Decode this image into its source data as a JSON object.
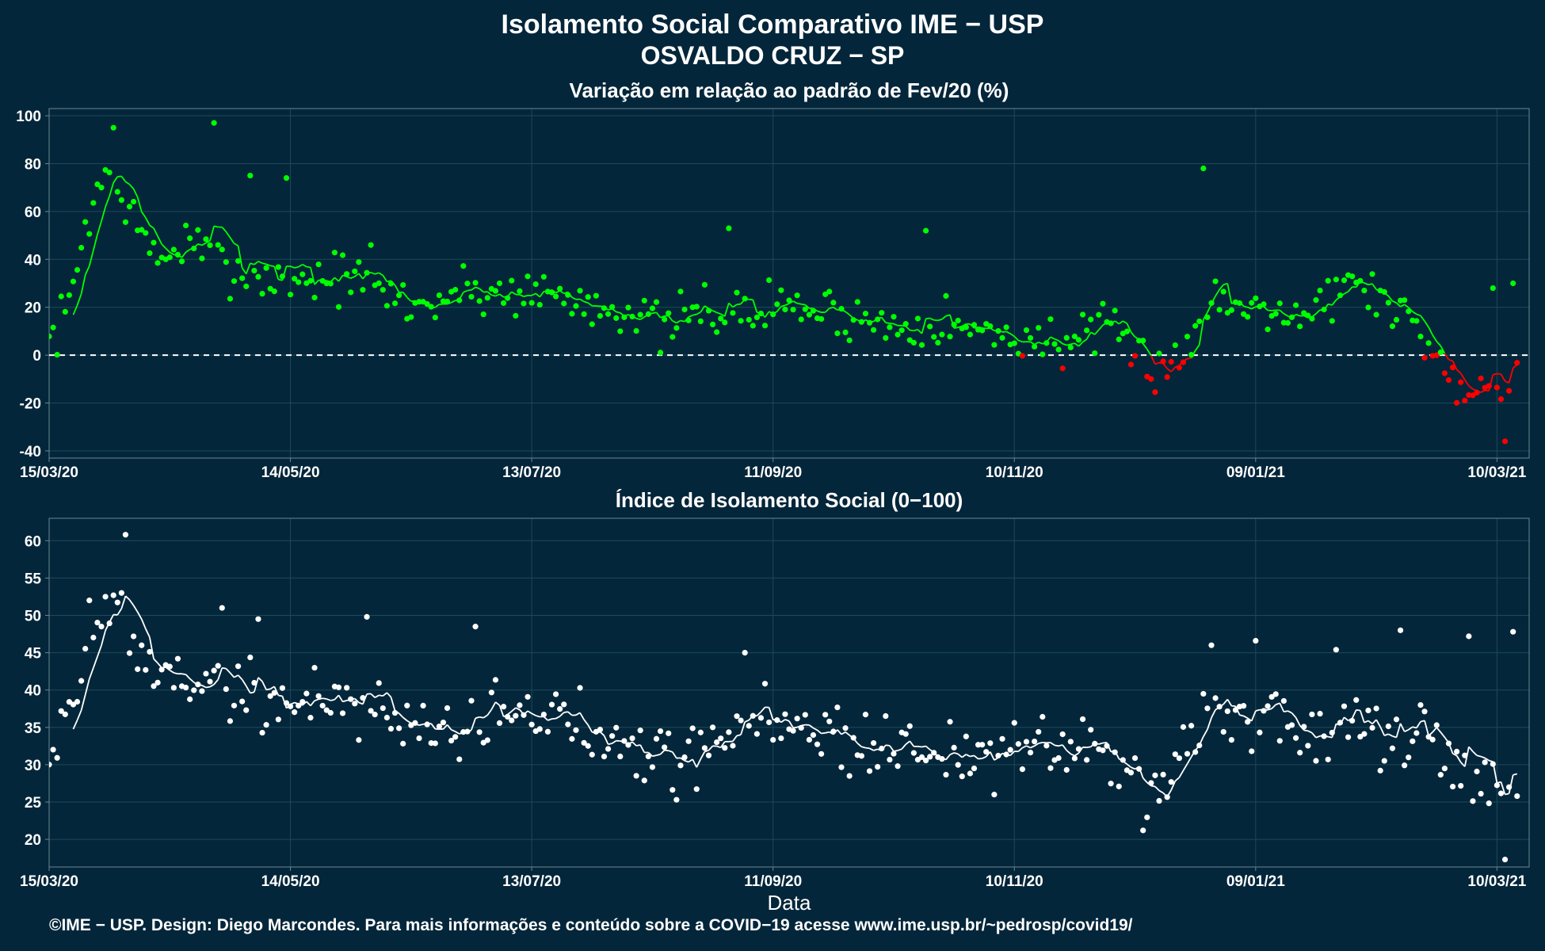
{
  "header": {
    "title_line1": "Isolamento Social Comparativo IME − USP",
    "title_line2": "OSVALDO CRUZ − SP"
  },
  "footer": {
    "credit": "©IME − USP. Design: Diego Marcondes. Para mais informações e conteúdo sobre a COVID−19 acesse www.ime.usp.br/~pedrosp/covid19/"
  },
  "colors": {
    "background": "#04263a",
    "positive_points": "#00ff00",
    "negative_points": "#ff0000",
    "index_points": "#ffffff",
    "grid": "#1b4a58",
    "zero_line": "#ffffff"
  },
  "chart_data": [
    {
      "type": "scatter",
      "title": "Variação em relação ao padrão de Fev/20 (%)",
      "xlabel": "",
      "ylabel": "",
      "x_range": [
        "2020-03-15",
        "2021-03-15"
      ],
      "x_ticks": [
        "15/03/20",
        "14/05/20",
        "13/07/20",
        "11/09/20",
        "10/11/20",
        "09/01/21",
        "10/03/21"
      ],
      "ylim": [
        -43,
        103
      ],
      "y_ticks": [
        -40,
        -20,
        0,
        20,
        40,
        60,
        80,
        100
      ],
      "reference_line": 0,
      "grid": true,
      "smoothing": "7-day moving average line, green above 0 and red below 0",
      "keyframes": [
        [
          "2020-03-15",
          5
        ],
        [
          "2020-03-20",
          20
        ],
        [
          "2020-03-24",
          55
        ],
        [
          "2020-03-29",
          77
        ],
        [
          "2020-04-03",
          65
        ],
        [
          "2020-04-08",
          45
        ],
        [
          "2020-04-13",
          40
        ],
        [
          "2020-04-18",
          48
        ],
        [
          "2020-04-23",
          42
        ],
        [
          "2020-04-28",
          38
        ],
        [
          "2020-05-03",
          34
        ],
        [
          "2020-05-10",
          32
        ],
        [
          "2020-05-20",
          32
        ],
        [
          "2020-05-28",
          33
        ],
        [
          "2020-06-05",
          27
        ],
        [
          "2020-06-15",
          20
        ],
        [
          "2020-06-25",
          27
        ],
        [
          "2020-07-05",
          26
        ],
        [
          "2020-07-15",
          27
        ],
        [
          "2020-07-25",
          22
        ],
        [
          "2020-08-05",
          20
        ],
        [
          "2020-08-15",
          10
        ],
        [
          "2020-08-25",
          20
        ],
        [
          "2020-09-05",
          16
        ],
        [
          "2020-09-12",
          22
        ],
        [
          "2020-09-20",
          19
        ],
        [
          "2020-09-30",
          17
        ],
        [
          "2020-10-10",
          12
        ],
        [
          "2020-10-20",
          16
        ],
        [
          "2020-10-30",
          10
        ],
        [
          "2020-11-10",
          8
        ],
        [
          "2020-11-20",
          5
        ],
        [
          "2020-11-30",
          9
        ],
        [
          "2020-12-05",
          8
        ],
        [
          "2020-12-10",
          0
        ],
        [
          "2020-12-15",
          -4
        ],
        [
          "2020-12-20",
          0
        ],
        [
          "2020-12-25",
          5
        ],
        [
          "2020-12-30",
          28
        ],
        [
          "2021-01-05",
          18
        ],
        [
          "2021-01-10",
          25
        ],
        [
          "2021-01-20",
          16
        ],
        [
          "2021-01-28",
          26
        ],
        [
          "2021-02-05",
          30
        ],
        [
          "2021-02-12",
          20
        ],
        [
          "2021-02-20",
          10
        ],
        [
          "2021-02-25",
          -8
        ],
        [
          "2021-03-03",
          -13
        ],
        [
          "2021-03-08",
          -14
        ],
        [
          "2021-03-15",
          0
        ]
      ],
      "outliers": [
        [
          "2020-03-31",
          95
        ],
        [
          "2020-04-25",
          97
        ],
        [
          "2020-05-04",
          75
        ],
        [
          "2020-05-13",
          74
        ],
        [
          "2020-06-03",
          46
        ],
        [
          "2020-08-31",
          53
        ],
        [
          "2020-10-19",
          52
        ],
        [
          "2020-12-27",
          78
        ],
        [
          "2021-03-09",
          28
        ],
        [
          "2021-03-12",
          -36
        ],
        [
          "2021-03-14",
          30
        ]
      ],
      "noise_amplitude": 8
    },
    {
      "type": "scatter",
      "title": "Índice de Isolamento Social (0−100)",
      "xlabel": "Data",
      "ylabel": "",
      "x_range": [
        "2020-03-15",
        "2021-03-15"
      ],
      "x_ticks": [
        "15/03/20",
        "14/05/20",
        "13/07/20",
        "11/09/20",
        "10/11/20",
        "09/01/21",
        "10/03/21"
      ],
      "ylim": [
        16.3,
        63
      ],
      "y_ticks": [
        20,
        25,
        30,
        35,
        40,
        45,
        50,
        55,
        60
      ],
      "grid": true,
      "smoothing": "7-day moving average line",
      "keyframes": [
        [
          "2020-03-15",
          32
        ],
        [
          "2020-03-20",
          38
        ],
        [
          "2020-03-27",
          48
        ],
        [
          "2020-04-01",
          51
        ],
        [
          "2020-04-07",
          43
        ],
        [
          "2020-04-15",
          42
        ],
        [
          "2020-04-25",
          41
        ],
        [
          "2020-05-05",
          39
        ],
        [
          "2020-05-15",
          38
        ],
        [
          "2020-05-28",
          39
        ],
        [
          "2020-06-10",
          36
        ],
        [
          "2020-06-25",
          35
        ],
        [
          "2020-07-05",
          37
        ],
        [
          "2020-07-20",
          36
        ],
        [
          "2020-08-05",
          34
        ],
        [
          "2020-08-20",
          31
        ],
        [
          "2020-09-01",
          35
        ],
        [
          "2020-09-10",
          36
        ],
        [
          "2020-09-25",
          34
        ],
        [
          "2020-10-10",
          32
        ],
        [
          "2020-10-25",
          32
        ],
        [
          "2020-11-10",
          31
        ],
        [
          "2020-11-25",
          32
        ],
        [
          "2020-12-05",
          31
        ],
        [
          "2020-12-15",
          27
        ],
        [
          "2020-12-22",
          33
        ],
        [
          "2020-12-30",
          38
        ],
        [
          "2021-01-05",
          35
        ],
        [
          "2021-01-15",
          36
        ],
        [
          "2021-01-25",
          33
        ],
        [
          "2021-02-05",
          36
        ],
        [
          "2021-02-12",
          32
        ],
        [
          "2021-02-20",
          34
        ],
        [
          "2021-03-01",
          27
        ],
        [
          "2021-03-10",
          27
        ],
        [
          "2021-03-15",
          26
        ]
      ],
      "outliers": [
        [
          "2020-03-25",
          52
        ],
        [
          "2020-03-29",
          52.5
        ],
        [
          "2020-04-02",
          53
        ],
        [
          "2020-04-03",
          60.8
        ],
        [
          "2020-04-27",
          51
        ],
        [
          "2020-05-06",
          49.5
        ],
        [
          "2020-06-02",
          49.8
        ],
        [
          "2020-06-29",
          48.5
        ],
        [
          "2020-08-18",
          25.3
        ],
        [
          "2020-09-04",
          45
        ],
        [
          "2020-12-12",
          21.2
        ],
        [
          "2020-12-29",
          46
        ],
        [
          "2021-01-09",
          46.6
        ],
        [
          "2021-01-29",
          45.4
        ],
        [
          "2021-02-14",
          48
        ],
        [
          "2021-03-03",
          47.2
        ],
        [
          "2021-03-12",
          17.3
        ],
        [
          "2021-03-14",
          47.8
        ]
      ],
      "noise_amplitude": 3.5
    }
  ]
}
